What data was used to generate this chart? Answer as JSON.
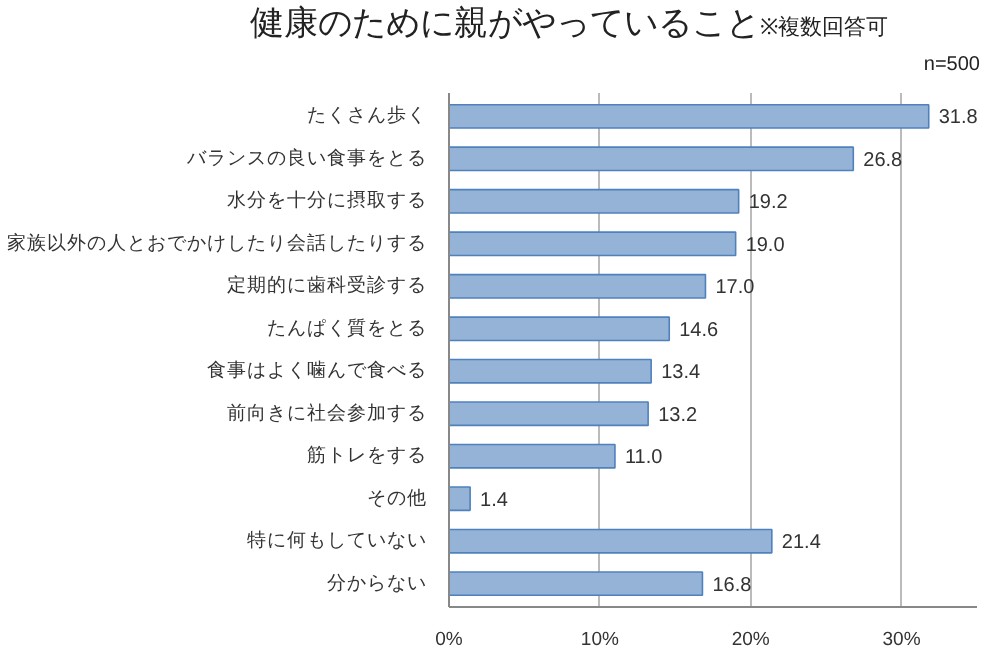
{
  "chart_data": {
    "type": "bar",
    "orientation": "horizontal",
    "title": "健康のために親がやっていること",
    "subtitle": "※複数回答可",
    "annotations": [
      "n=500"
    ],
    "categories": [
      "たくさん歩く",
      "バランスの良い食事をとる",
      "水分を十分に摂取する",
      "家族以外の人とおでかけしたり会話したりする",
      "定期的に歯科受診する",
      "たんぱく質をとる",
      "食事はよく噛んで食べる",
      "前向きに社会参加する",
      "筋トレをする",
      "その他",
      "特に何もしていない",
      "分からない"
    ],
    "values": [
      31.8,
      26.8,
      19.2,
      19.0,
      17.0,
      14.6,
      13.4,
      13.2,
      11.0,
      1.4,
      21.4,
      16.8
    ],
    "value_labels": [
      "31.8",
      "26.8",
      "19.2",
      "19.0",
      "17.0",
      "14.6",
      "13.4",
      "13.2",
      "11.0",
      "1.4",
      "21.4",
      "16.8"
    ],
    "color": "#95b3d7",
    "xlim": [
      0,
      35
    ],
    "xticks": [
      {
        "value": 0,
        "label": "0%"
      },
      {
        "value": 10,
        "label": "10%"
      },
      {
        "value": 20,
        "label": "20%"
      },
      {
        "value": 30,
        "label": "30%"
      }
    ],
    "grid": "x"
  }
}
